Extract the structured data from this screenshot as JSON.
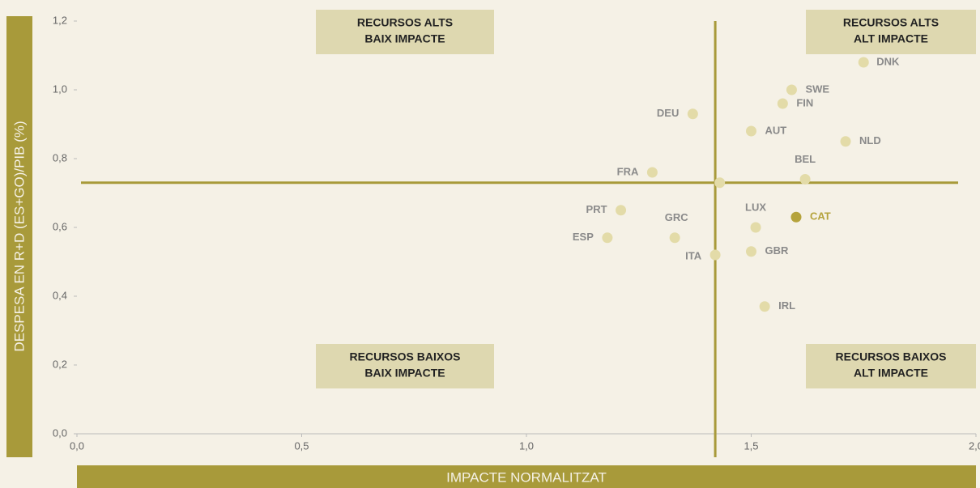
{
  "chart_data": {
    "type": "scatter",
    "xlabel": "IMPACTE NORMALITZAT",
    "ylabel": "DESPESA EN R+D (ES+GO)/PIB (%)",
    "labels": [
      "DNK",
      "SWE",
      "FIN",
      "DEU",
      "AUT",
      "NLD",
      "BEL",
      "FRA",
      null,
      "PRT",
      "LUX",
      "CAT",
      "GRC",
      "ESP",
      "GBR",
      "ITA",
      "IRL"
    ],
    "x": [
      1.75,
      1.59,
      1.57,
      1.37,
      1.5,
      1.71,
      1.62,
      1.28,
      1.43,
      1.21,
      1.51,
      1.6,
      1.33,
      1.18,
      1.5,
      1.42,
      1.53
    ],
    "values": [
      1.08,
      1.0,
      0.96,
      0.93,
      0.88,
      0.85,
      0.74,
      0.76,
      0.73,
      0.65,
      0.6,
      0.63,
      0.57,
      0.57,
      0.53,
      0.52,
      0.37
    ],
    "color": "#e3dba8",
    "highlight": "CAT",
    "highlight_color": "#b5a33c",
    "reference_lines": {
      "x": 1.42,
      "y": 0.73
    },
    "xlim": [
      0,
      2
    ],
    "ylim": [
      0,
      1.2
    ],
    "xticks": [
      {
        "value": 0,
        "label": "0,0"
      },
      {
        "value": 0.5,
        "label": "0,5"
      },
      {
        "value": 1,
        "label": "1,0"
      },
      {
        "value": 1.5,
        "label": "1,5"
      },
      {
        "value": 2,
        "label": "2,0"
      }
    ],
    "yticks": [
      {
        "value": 0,
        "label": "0,0"
      },
      {
        "value": 0.2,
        "label": "0,2"
      },
      {
        "value": 0.4,
        "label": "0,4"
      },
      {
        "value": 0.6,
        "label": "0,6"
      },
      {
        "value": 0.8,
        "label": "0,8"
      },
      {
        "value": 1,
        "label": "1,0"
      },
      {
        "value": 1.2,
        "label": "1,2"
      }
    ],
    "quadrants": [
      {
        "lines": [
          "RECURSOS ALTS",
          "BAIX IMPACTE"
        ]
      },
      {
        "lines": [
          "RECURSOS ALTS",
          "ALT IMPACTE"
        ]
      },
      {
        "lines": [
          "RECURSOS BAIXOS",
          "BAIX IMPACTE"
        ]
      },
      {
        "lines": [
          "RECURSOS BAIXOS",
          "ALT IMPACTE"
        ]
      }
    ]
  }
}
